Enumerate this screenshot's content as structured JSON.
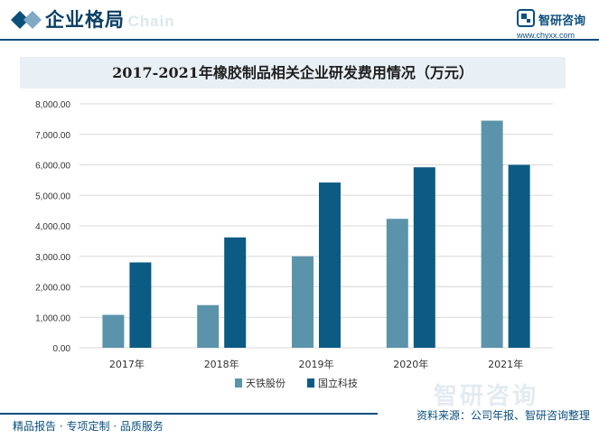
{
  "header": {
    "section_title": "企业格局",
    "bg_word": "l Chain",
    "brand_name": "智研咨询",
    "brand_url": "www.chyxx.com"
  },
  "watermark": {
    "text": "智研咨询"
  },
  "footer": {
    "left": "精品报告 · 专项定制 · 品质服务",
    "right": "资料来源：公司年报、智研咨询整理"
  },
  "colors": {
    "series1": "#5b93ab",
    "series2": "#0b5b84",
    "grid": "#d9d9d9",
    "accent": "#0b4f7d"
  },
  "chart_data": {
    "type": "bar",
    "title": "2017-2021年橡胶制品相关企业研发费用情况（万元）",
    "categories": [
      "2017年",
      "2018年",
      "2019年",
      "2020年",
      "2021年"
    ],
    "series": [
      {
        "name": "天铁股份",
        "values": [
          1080,
          1400,
          3000,
          4230,
          7450
        ]
      },
      {
        "name": "国立科技",
        "values": [
          2800,
          3620,
          5420,
          5920,
          6000
        ]
      }
    ],
    "ylim": [
      0,
      8000
    ],
    "yticks": [
      "0.00",
      "1,000.00",
      "2,000.00",
      "3,000.00",
      "4,000.00",
      "5,000.00",
      "6,000.00",
      "7,000.00",
      "8,000.00"
    ],
    "ytick_values": [
      0,
      1000,
      2000,
      3000,
      4000,
      5000,
      6000,
      7000,
      8000
    ],
    "xlabel": "",
    "ylabel": "",
    "grid": true,
    "legend_position": "bottom"
  }
}
